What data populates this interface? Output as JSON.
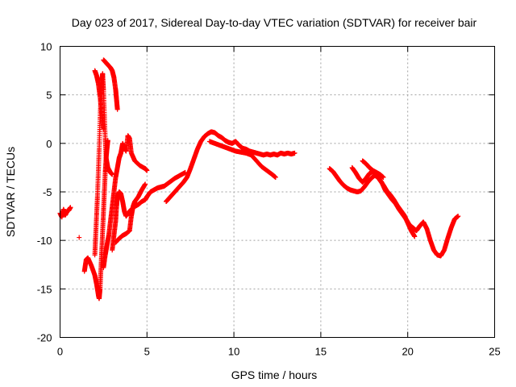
{
  "chart_data": {
    "type": "scatter",
    "title": "Day 023 of 2017, Sidereal Day-to-day VTEC variation (SDTVAR) for receiver bair",
    "xlabel": "GPS time / hours",
    "ylabel": "SDTVAR / TECUs",
    "xlim": [
      0,
      25
    ],
    "ylim": [
      -20,
      10
    ],
    "xticks": [
      0,
      5,
      10,
      15,
      20,
      25
    ],
    "yticks": [
      -20,
      -15,
      -10,
      -5,
      0,
      5,
      10
    ],
    "grid": true,
    "marker": "+",
    "color": "#ff0000",
    "series": [
      {
        "name": "s1",
        "points": [
          [
            0.0,
            -7.2
          ],
          [
            0.1,
            -7.6
          ],
          [
            0.2,
            -6.8
          ],
          [
            0.3,
            -7.4
          ],
          [
            0.4,
            -7.0
          ],
          [
            0.5,
            -6.9
          ],
          [
            0.6,
            -6.6
          ]
        ]
      },
      {
        "name": "s2",
        "points": [
          [
            1.1,
            -9.7
          ]
        ]
      },
      {
        "name": "s3",
        "points": [
          [
            1.4,
            -13.2
          ],
          [
            1.5,
            -12.0
          ],
          [
            1.6,
            -11.8
          ],
          [
            1.8,
            -12.6
          ],
          [
            2.0,
            -13.6
          ],
          [
            2.1,
            -14.5
          ],
          [
            2.2,
            -15.6
          ],
          [
            2.25,
            -16.0
          ],
          [
            2.3,
            -15.0
          ],
          [
            2.35,
            -13.0
          ],
          [
            2.4,
            -11.0
          ],
          [
            2.45,
            -9.0
          ],
          [
            2.5,
            -7.0
          ],
          [
            2.55,
            -5.0
          ],
          [
            2.6,
            -3.0
          ],
          [
            2.65,
            -1.5
          ],
          [
            2.7,
            -0.5
          ],
          [
            2.75,
            0.3
          ]
        ]
      },
      {
        "name": "s4",
        "points": [
          [
            2.0,
            -11.5
          ],
          [
            2.05,
            -9.5
          ],
          [
            2.1,
            -7.5
          ],
          [
            2.15,
            -5.5
          ],
          [
            2.2,
            -3.0
          ],
          [
            2.25,
            -0.5
          ],
          [
            2.3,
            2.5
          ],
          [
            2.35,
            5.0
          ],
          [
            2.4,
            6.5
          ],
          [
            2.45,
            7.2
          ],
          [
            2.5,
            5.5
          ],
          [
            2.55,
            3.0
          ],
          [
            2.6,
            0.5
          ],
          [
            2.65,
            -1.5
          ],
          [
            2.75,
            -2.5
          ],
          [
            2.9,
            -3.0
          ],
          [
            3.0,
            -3.2
          ]
        ]
      },
      {
        "name": "s5",
        "points": [
          [
            2.0,
            7.5
          ],
          [
            2.1,
            7.0
          ],
          [
            2.2,
            6.2
          ],
          [
            2.3,
            4.8
          ],
          [
            2.4,
            3.0
          ],
          [
            2.5,
            1.5
          ]
        ]
      },
      {
        "name": "s6",
        "points": [
          [
            2.5,
            8.6
          ],
          [
            2.6,
            8.4
          ],
          [
            2.7,
            8.2
          ],
          [
            2.8,
            8.0
          ],
          [
            2.9,
            7.8
          ],
          [
            3.0,
            7.5
          ],
          [
            3.1,
            6.8
          ],
          [
            3.2,
            5.5
          ],
          [
            3.25,
            4.5
          ],
          [
            3.3,
            3.5
          ]
        ]
      },
      {
        "name": "s7",
        "points": [
          [
            2.5,
            -12.8
          ],
          [
            2.6,
            -11.5
          ],
          [
            2.7,
            -10.5
          ],
          [
            2.8,
            -9.5
          ],
          [
            2.9,
            -8.0
          ],
          [
            3.0,
            -6.5
          ],
          [
            3.1,
            -5.0
          ],
          [
            3.2,
            -3.5
          ],
          [
            3.3,
            -2.5
          ],
          [
            3.4,
            -1.5
          ],
          [
            3.5,
            -1.0
          ],
          [
            3.6,
            0.0
          ],
          [
            3.7,
            -0.5
          ],
          [
            3.8,
            -0.8
          ],
          [
            3.9,
            0.8
          ],
          [
            4.0,
            0.5
          ],
          [
            4.1,
            -1.0
          ],
          [
            4.3,
            -1.8
          ],
          [
            4.6,
            -2.3
          ],
          [
            4.9,
            -2.6
          ],
          [
            5.0,
            -2.8
          ]
        ]
      },
      {
        "name": "s8",
        "points": [
          [
            3.0,
            -11.0
          ],
          [
            3.1,
            -9.5
          ],
          [
            3.2,
            -8.0
          ],
          [
            3.25,
            -6.5
          ],
          [
            3.3,
            -5.5
          ],
          [
            3.4,
            -5.0
          ],
          [
            3.5,
            -5.2
          ],
          [
            3.6,
            -6.0
          ],
          [
            3.7,
            -7.0
          ],
          [
            3.8,
            -7.5
          ],
          [
            3.9,
            -7.2
          ],
          [
            4.1,
            -6.8
          ],
          [
            4.3,
            -6.5
          ],
          [
            4.5,
            -6.3
          ],
          [
            4.7,
            -6.0
          ],
          [
            4.9,
            -5.8
          ],
          [
            5.0,
            -5.5
          ],
          [
            5.2,
            -5.0
          ],
          [
            5.4,
            -4.8
          ],
          [
            5.6,
            -4.6
          ],
          [
            5.8,
            -4.5
          ],
          [
            6.0,
            -4.4
          ],
          [
            6.3,
            -4.0
          ],
          [
            6.6,
            -3.6
          ],
          [
            6.9,
            -3.3
          ],
          [
            7.2,
            -3.0
          ]
        ]
      },
      {
        "name": "s9",
        "points": [
          [
            3.2,
            -10.2
          ],
          [
            3.4,
            -9.8
          ],
          [
            3.6,
            -9.5
          ],
          [
            3.8,
            -9.3
          ],
          [
            4.0,
            -9.0
          ],
          [
            4.1,
            -7.5
          ],
          [
            4.2,
            -6.5
          ],
          [
            4.3,
            -6.0
          ],
          [
            4.5,
            -5.5
          ],
          [
            4.7,
            -4.8
          ],
          [
            4.9,
            -4.2
          ]
        ]
      },
      {
        "name": "s10",
        "points": [
          [
            6.1,
            -6.0
          ],
          [
            6.3,
            -5.6
          ],
          [
            6.5,
            -5.2
          ],
          [
            6.7,
            -4.8
          ],
          [
            6.9,
            -4.4
          ],
          [
            7.1,
            -4.0
          ],
          [
            7.3,
            -3.5
          ],
          [
            7.5,
            -2.6
          ],
          [
            7.7,
            -1.6
          ],
          [
            7.9,
            -0.6
          ],
          [
            8.1,
            0.2
          ],
          [
            8.3,
            0.7
          ],
          [
            8.5,
            1.0
          ],
          [
            8.7,
            1.2
          ],
          [
            8.9,
            1.1
          ],
          [
            9.1,
            0.8
          ],
          [
            9.3,
            0.6
          ],
          [
            9.5,
            0.3
          ],
          [
            9.7,
            0.1
          ],
          [
            9.9,
            0.0
          ],
          [
            10.1,
            0.2
          ],
          [
            10.3,
            -0.2
          ],
          [
            10.5,
            -0.5
          ],
          [
            10.7,
            -0.6
          ],
          [
            10.9,
            -0.8
          ],
          [
            11.1,
            -0.9
          ],
          [
            11.3,
            -1.0
          ],
          [
            11.5,
            -1.1
          ],
          [
            11.7,
            -1.2
          ],
          [
            11.9,
            -1.1
          ],
          [
            12.1,
            -1.2
          ],
          [
            12.3,
            -1.1
          ],
          [
            12.5,
            -1.2
          ],
          [
            12.7,
            -1.0
          ],
          [
            12.9,
            -1.1
          ],
          [
            13.1,
            -1.0
          ],
          [
            13.3,
            -1.1
          ],
          [
            13.5,
            -1.0
          ]
        ]
      },
      {
        "name": "s11",
        "points": [
          [
            8.6,
            0.2
          ],
          [
            8.9,
            0.0
          ],
          [
            9.2,
            -0.2
          ],
          [
            9.5,
            -0.4
          ],
          [
            9.8,
            -0.6
          ],
          [
            10.1,
            -0.8
          ],
          [
            10.4,
            -0.9
          ],
          [
            10.7,
            -1.0
          ],
          [
            11.0,
            -1.2
          ],
          [
            11.3,
            -1.8
          ],
          [
            11.6,
            -2.4
          ],
          [
            11.9,
            -2.8
          ],
          [
            12.2,
            -3.2
          ],
          [
            12.4,
            -3.5
          ]
        ]
      },
      {
        "name": "s12",
        "points": [
          [
            15.5,
            -2.6
          ],
          [
            15.7,
            -2.9
          ],
          [
            15.9,
            -3.4
          ],
          [
            16.1,
            -3.9
          ],
          [
            16.3,
            -4.3
          ],
          [
            16.5,
            -4.6
          ],
          [
            16.7,
            -4.8
          ],
          [
            16.9,
            -4.9
          ],
          [
            17.1,
            -5.0
          ],
          [
            17.3,
            -4.9
          ],
          [
            17.5,
            -4.5
          ],
          [
            17.7,
            -4.0
          ],
          [
            17.9,
            -3.6
          ],
          [
            18.1,
            -3.3
          ],
          [
            18.3,
            -3.5
          ],
          [
            18.5,
            -4.0
          ],
          [
            18.7,
            -4.8
          ],
          [
            18.9,
            -5.3
          ],
          [
            19.1,
            -5.8
          ],
          [
            19.3,
            -6.2
          ],
          [
            19.5,
            -6.8
          ],
          [
            19.7,
            -7.3
          ],
          [
            19.9,
            -7.8
          ],
          [
            20.1,
            -8.4
          ],
          [
            20.3,
            -8.7
          ],
          [
            20.5,
            -9.0
          ],
          [
            20.7,
            -8.5
          ],
          [
            20.9,
            -8.1
          ],
          [
            21.1,
            -8.8
          ],
          [
            21.3,
            -10.0
          ],
          [
            21.5,
            -11.0
          ],
          [
            21.7,
            -11.5
          ],
          [
            21.9,
            -11.6
          ],
          [
            22.1,
            -11.0
          ],
          [
            22.3,
            -9.8
          ],
          [
            22.5,
            -8.7
          ],
          [
            22.7,
            -7.8
          ],
          [
            22.9,
            -7.5
          ]
        ]
      },
      {
        "name": "s13",
        "points": [
          [
            16.8,
            -2.5
          ],
          [
            17.0,
            -3.0
          ],
          [
            17.2,
            -3.6
          ],
          [
            17.4,
            -4.0
          ],
          [
            17.6,
            -3.6
          ],
          [
            17.8,
            -3.1
          ],
          [
            18.0,
            -2.9
          ],
          [
            18.2,
            -3.3
          ],
          [
            18.4,
            -3.8
          ],
          [
            18.6,
            -4.3
          ],
          [
            18.8,
            -4.9
          ],
          [
            19.0,
            -5.3
          ],
          [
            19.2,
            -5.8
          ],
          [
            19.4,
            -6.4
          ],
          [
            19.6,
            -6.9
          ],
          [
            19.8,
            -7.4
          ],
          [
            20.0,
            -8.2
          ],
          [
            20.2,
            -9.0
          ],
          [
            20.4,
            -9.6
          ]
        ]
      },
      {
        "name": "s14",
        "points": [
          [
            17.4,
            -1.8
          ],
          [
            17.6,
            -2.1
          ],
          [
            17.8,
            -2.5
          ],
          [
            18.0,
            -2.8
          ],
          [
            18.2,
            -3.0
          ],
          [
            18.4,
            -3.2
          ],
          [
            18.6,
            -3.5
          ]
        ]
      }
    ]
  }
}
